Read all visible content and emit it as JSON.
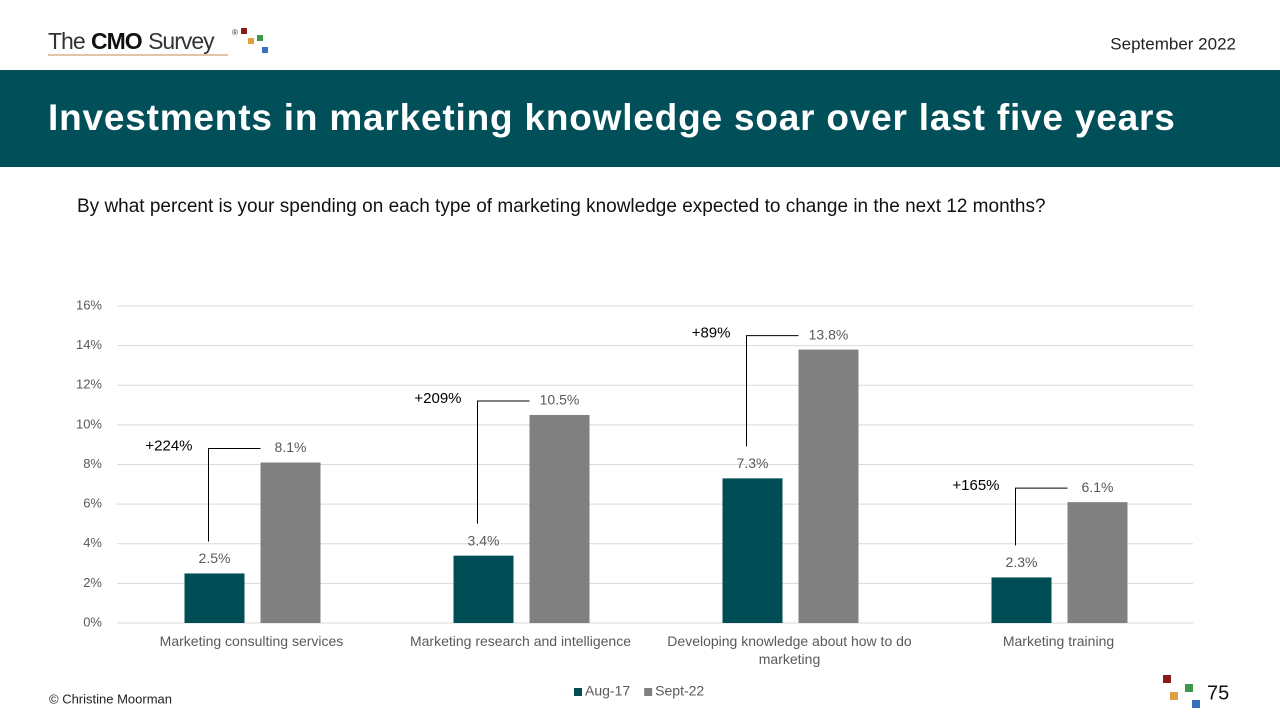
{
  "header": {
    "logo": {
      "prefix": "The",
      "brand": "CMO",
      "suffix": "Survey",
      "mark": "®"
    },
    "date": "September 2022"
  },
  "chart_data": {
    "type": "bar",
    "title": "Investments in marketing knowledge soar over last five years",
    "subtitle": "By what percent is your spending on each type of marketing knowledge expected to change in the next 12 months?",
    "categories": [
      "Marketing consulting services",
      "Marketing research and intelligence",
      "Developing knowledge about how to do marketing",
      "Marketing training"
    ],
    "series": [
      {
        "name": "Aug-17",
        "color": "#004d55",
        "values": [
          2.5,
          3.4,
          7.3,
          2.3
        ],
        "value_labels": [
          "2.5%",
          "3.4%",
          "7.3%",
          "2.3%"
        ]
      },
      {
        "name": "Sept-22",
        "color": "#808080",
        "values": [
          8.1,
          10.5,
          13.8,
          6.1
        ],
        "value_labels": [
          "8.1%",
          "10.5%",
          "13.8%",
          "6.1%"
        ]
      }
    ],
    "annotations": [
      "+224%",
      "+209%",
      "+89%",
      "+165%"
    ],
    "ylim": [
      0,
      16
    ],
    "yticks": [
      {
        "value": 0,
        "label": "0%"
      },
      {
        "value": 2,
        "label": "2%"
      },
      {
        "value": 4,
        "label": "4%"
      },
      {
        "value": 6,
        "label": "6%"
      },
      {
        "value": 8,
        "label": "8%"
      },
      {
        "value": 10,
        "label": "10%"
      },
      {
        "value": 12,
        "label": "12%"
      },
      {
        "value": 14,
        "label": "14%"
      },
      {
        "value": 16,
        "label": "16%"
      }
    ],
    "grid": true,
    "legend": "bottom"
  },
  "footer": {
    "copyright": "© Christine Moorman",
    "page": "75"
  }
}
